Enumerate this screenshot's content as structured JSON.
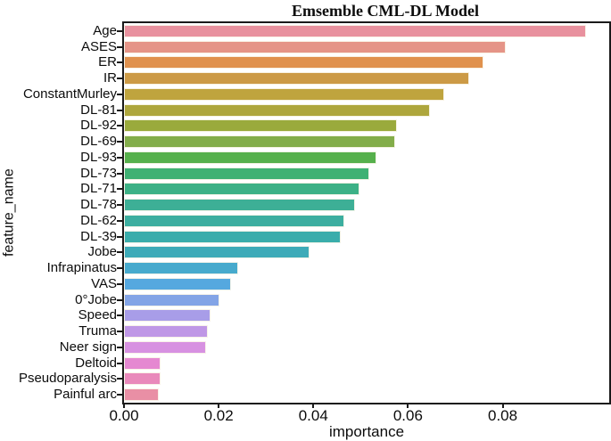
{
  "chart_data": {
    "type": "bar",
    "orientation": "horizontal",
    "title": "Emsemble CML-DL Model",
    "xlabel": "importance",
    "ylabel": "feature_name",
    "xlim": [
      0,
      0.1027
    ],
    "xticks": [
      0,
      0.02,
      0.04,
      0.06,
      0.08
    ],
    "xtick_labels": [
      "0.00",
      "0.02",
      "0.04",
      "0.06",
      "0.08"
    ],
    "grid": false,
    "legend": "none",
    "categories": [
      "Age",
      "ASES",
      "ER",
      "IR",
      "ConstantMurley",
      "DL-81",
      "DL-92",
      "DL-69",
      "DL-93",
      "DL-73",
      "DL-71",
      "DL-78",
      "DL-62",
      "DL-39",
      "Jobe",
      "Infrapinatus",
      "VAS",
      "0°Jobe",
      "Speed",
      "Truma",
      "Neer sign",
      "Deltoid",
      "Pseudoparalysis",
      "Painful arc"
    ],
    "values": [
      0.0977,
      0.0806,
      0.0759,
      0.073,
      0.0677,
      0.0647,
      0.0577,
      0.0573,
      0.0534,
      0.0519,
      0.0498,
      0.0488,
      0.0466,
      0.0458,
      0.0392,
      0.0241,
      0.0226,
      0.0201,
      0.0182,
      0.0178,
      0.0173,
      0.0078,
      0.0078,
      0.0073
    ],
    "bar_colors": [
      "#e8919e",
      "#e59487",
      "#e0914d",
      "#cc9a46",
      "#bfa43e",
      "#aea63c",
      "#9aaa3c",
      "#83ad4a",
      "#56b04c",
      "#3fb173",
      "#3cb186",
      "#3daf96",
      "#3caea0",
      "#3aadab",
      "#3dabb8",
      "#47aacd",
      "#55a8df",
      "#83a4e6",
      "#a89de8",
      "#bf97e6",
      "#d791e1",
      "#e588d1",
      "#e989bb",
      "#e98fa5"
    ],
    "axis_color": "#1a1a1a",
    "text_color": "#0c0c0c"
  }
}
